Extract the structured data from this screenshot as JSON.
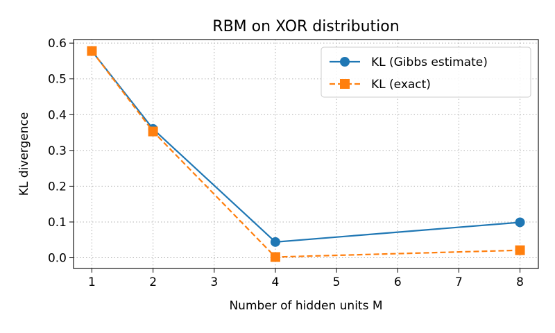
{
  "chart_data": {
    "type": "line",
    "title": "RBM on XOR distribution",
    "xlabel": "Number of hidden units M",
    "ylabel": "KL divergence",
    "xlim": [
      0.7,
      8.3
    ],
    "ylim": [
      -0.03,
      0.61
    ],
    "xticks": [
      1,
      2,
      3,
      4,
      5,
      6,
      7,
      8
    ],
    "yticks": [
      0.0,
      0.1,
      0.2,
      0.3,
      0.4,
      0.5,
      0.6
    ],
    "ytick_labels": [
      "0.0",
      "0.1",
      "0.2",
      "0.3",
      "0.4",
      "0.5",
      "0.6"
    ],
    "grid": true,
    "legend_position": "top-right",
    "series": [
      {
        "name": "KL (Gibbs estimate)",
        "x": [
          1,
          2,
          4,
          8
        ],
        "y": [
          0.578,
          0.36,
          0.044,
          0.099
        ],
        "color": "#1f77b4",
        "marker": "circle",
        "linestyle": "solid"
      },
      {
        "name": "KL (exact)",
        "x": [
          1,
          2,
          4,
          8
        ],
        "y": [
          0.578,
          0.353,
          0.002,
          0.021
        ],
        "color": "#ff7f0e",
        "marker": "square",
        "linestyle": "dashed"
      }
    ]
  }
}
